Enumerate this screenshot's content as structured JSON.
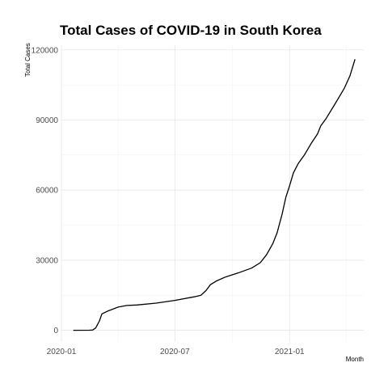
{
  "chart_data": {
    "type": "line",
    "title": "Total Cases of COVID-19 in South Korea",
    "xlabel": "Month",
    "ylabel": "Total Cases",
    "xlim": [
      "2020-01-01",
      "2021-04-30"
    ],
    "ylim": [
      -5000,
      122000
    ],
    "grid": true,
    "legend": "none",
    "x_ticks": [
      {
        "date": "2020-01-01",
        "label": "2020-01"
      },
      {
        "date": "2020-07-01",
        "label": "2020-07"
      },
      {
        "date": "2021-01-01",
        "label": "2021-01"
      }
    ],
    "y_ticks": [
      {
        "value": 0,
        "label": "0"
      },
      {
        "value": 30000,
        "label": "30000"
      },
      {
        "value": 60000,
        "label": "60000"
      },
      {
        "value": 90000,
        "label": "90000"
      },
      {
        "value": 120000,
        "label": "120000"
      }
    ],
    "series": [
      {
        "color": "#000000",
        "points": [
          {
            "x": "2020-01-20",
            "y": 0
          },
          {
            "x": "2020-02-15",
            "y": 30
          },
          {
            "x": "2020-02-20",
            "y": 100
          },
          {
            "x": "2020-02-25",
            "y": 1000
          },
          {
            "x": "2020-03-02",
            "y": 4000
          },
          {
            "x": "2020-03-06",
            "y": 7000
          },
          {
            "x": "2020-03-15",
            "y": 8200
          },
          {
            "x": "2020-04-01",
            "y": 9900
          },
          {
            "x": "2020-04-15",
            "y": 10600
          },
          {
            "x": "2020-05-01",
            "y": 10800
          },
          {
            "x": "2020-06-01",
            "y": 11600
          },
          {
            "x": "2020-07-01",
            "y": 12800
          },
          {
            "x": "2020-08-01",
            "y": 14300
          },
          {
            "x": "2020-08-12",
            "y": 15000
          },
          {
            "x": "2020-08-20",
            "y": 17000
          },
          {
            "x": "2020-08-27",
            "y": 19500
          },
          {
            "x": "2020-09-05",
            "y": 21000
          },
          {
            "x": "2020-09-20",
            "y": 22800
          },
          {
            "x": "2020-10-10",
            "y": 24500
          },
          {
            "x": "2020-11-01",
            "y": 26600
          },
          {
            "x": "2020-11-15",
            "y": 28900
          },
          {
            "x": "2020-11-25",
            "y": 32300
          },
          {
            "x": "2020-12-05",
            "y": 37000
          },
          {
            "x": "2020-12-12",
            "y": 41700
          },
          {
            "x": "2020-12-20",
            "y": 49700
          },
          {
            "x": "2020-12-26",
            "y": 56900
          },
          {
            "x": "2021-01-01",
            "y": 61800
          },
          {
            "x": "2021-01-07",
            "y": 67300
          },
          {
            "x": "2021-01-15",
            "y": 71400
          },
          {
            "x": "2021-01-25",
            "y": 75100
          },
          {
            "x": "2021-02-05",
            "y": 80100
          },
          {
            "x": "2021-02-15",
            "y": 84100
          },
          {
            "x": "2021-02-20",
            "y": 87500
          },
          {
            "x": "2021-03-01",
            "y": 90800
          },
          {
            "x": "2021-03-15",
            "y": 96900
          },
          {
            "x": "2021-03-30",
            "y": 103700
          },
          {
            "x": "2021-04-08",
            "y": 109000
          },
          {
            "x": "2021-04-16",
            "y": 116000
          }
        ]
      }
    ]
  }
}
